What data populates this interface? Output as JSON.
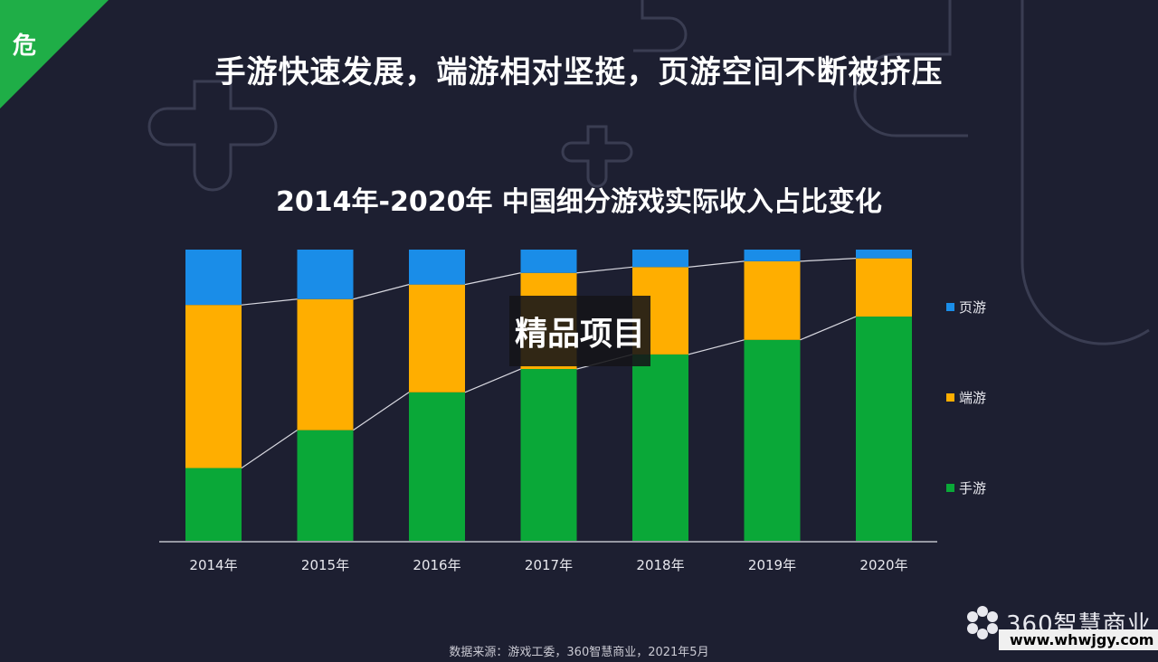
{
  "badge": {
    "text": "危"
  },
  "headline": "手游快速发展，端游相对坚挺，页游空间不断被挤压",
  "watermark": "精品项目",
  "source": "数据来源：游戏工委，360智慧商业，2021年5月",
  "brand": {
    "name": "360智慧商业",
    "site": "www.whwjgy.com"
  },
  "colors": {
    "background": "#1d1f31",
    "mobile": "#0aa838",
    "pc": "#ffae00",
    "web": "#1a8de8",
    "badge": "#1fae47"
  },
  "chart_data": {
    "type": "bar",
    "stacked": true,
    "normalized": true,
    "title": "2014年-2020年 中国细分游戏实际收入占比变化",
    "categories": [
      "2014年",
      "2015年",
      "2016年",
      "2017年",
      "2018年",
      "2019年",
      "2020年"
    ],
    "series": [
      {
        "name": "手游",
        "color": "#0aa838",
        "values": [
          25,
          38,
          51,
          59,
          64,
          69,
          77
        ]
      },
      {
        "name": "端游",
        "color": "#ffae00",
        "values": [
          56,
          45,
          37,
          33,
          30,
          27,
          20
        ]
      },
      {
        "name": "页游",
        "color": "#1a8de8",
        "values": [
          19,
          17,
          12,
          8,
          6,
          4,
          3
        ]
      }
    ],
    "legend_order": [
      "页游",
      "端游",
      "手游"
    ],
    "ylim": [
      0,
      100
    ],
    "grid": false,
    "legend_position": "right",
    "connector_lines": true
  }
}
